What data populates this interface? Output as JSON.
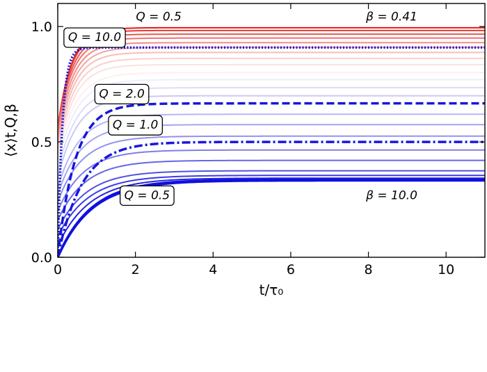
{
  "chart_data": {
    "type": "line",
    "xlabel": "t/τ₀",
    "ylabel": "⟨x⟩t,Q,β",
    "xlim": [
      0,
      11
    ],
    "ylim": [
      0,
      1.1
    ],
    "xticks": [
      0,
      2,
      4,
      6,
      8,
      10
    ],
    "xtick_labels": [
      "0",
      "2",
      "4",
      "6",
      "8",
      "10"
    ],
    "yticks": [
      0.0,
      0.5,
      1.0
    ],
    "ytick_labels": [
      "0.0",
      "0.5",
      "1.0"
    ],
    "grid": false,
    "model": "x(t) = a + (s - a)(1 - exp(-t/tau))",
    "series": [
      {
        "color": "#e41b16",
        "style": "solid",
        "start": 0.56,
        "asymptote": 0.995,
        "tau": 0.35
      },
      {
        "color": "#e73a34",
        "style": "solid",
        "start": 0.56,
        "asymptote": 0.983,
        "tau": 0.35
      },
      {
        "color": "#ea5651",
        "style": "solid",
        "start": 0.55,
        "asymptote": 0.967,
        "tau": 0.36
      },
      {
        "color": "#ee726e",
        "style": "solid",
        "start": 0.54,
        "asymptote": 0.95,
        "tau": 0.37
      },
      {
        "color": "#f18c88",
        "style": "solid",
        "start": 0.52,
        "asymptote": 0.93,
        "tau": 0.38
      },
      {
        "color": "#f4a5a2",
        "style": "solid",
        "start": 0.5,
        "asymptote": 0.91,
        "tau": 0.39
      },
      {
        "color": "#f7bcb9",
        "style": "solid",
        "start": 0.48,
        "asymptote": 0.888,
        "tau": 0.4
      },
      {
        "color": "#f9d0ce",
        "style": "solid",
        "start": 0.46,
        "asymptote": 0.862,
        "tau": 0.41
      },
      {
        "color": "#fbe2e1",
        "style": "solid",
        "start": 0.44,
        "asymptote": 0.835,
        "tau": 0.42
      },
      {
        "color": "#fdf0ef",
        "style": "solid",
        "start": 0.42,
        "asymptote": 0.8,
        "tau": 0.44
      },
      {
        "color": "#eeeefc",
        "style": "solid",
        "start": 0.4,
        "asymptote": 0.77,
        "tau": 0.46
      },
      {
        "color": "#dcdcfb",
        "style": "solid",
        "start": 0.37,
        "asymptote": 0.735,
        "tau": 0.48
      },
      {
        "color": "#c8c8f8",
        "style": "solid",
        "start": 0.34,
        "asymptote": 0.7,
        "tau": 0.5
      },
      {
        "color": "#b6b6f6",
        "style": "solid",
        "start": 0.3,
        "asymptote": 0.62,
        "tau": 0.55
      },
      {
        "color": "#a5a5f4",
        "style": "solid",
        "start": 0.27,
        "asymptote": 0.575,
        "tau": 0.58
      },
      {
        "color": "#9090f1",
        "style": "solid",
        "start": 0.24,
        "asymptote": 0.525,
        "tau": 0.62
      },
      {
        "color": "#7d7dee",
        "style": "solid",
        "start": 0.2,
        "asymptote": 0.465,
        "tau": 0.66
      },
      {
        "color": "#6565eb",
        "style": "solid",
        "start": 0.16,
        "asymptote": 0.42,
        "tau": 0.7
      },
      {
        "color": "#5050e8",
        "style": "solid",
        "start": 0.12,
        "asymptote": 0.375,
        "tau": 0.74
      },
      {
        "color": "#3a3ae5",
        "style": "solid",
        "start": 0.09,
        "asymptote": 0.355,
        "tau": 0.78
      },
      {
        "color": "#2424e2",
        "style": "solid",
        "start": 0.05,
        "asymptote": 0.343,
        "tau": 0.82
      },
      {
        "color": "#1010df",
        "style": "solid",
        "start": 0.0,
        "asymptote": 0.336,
        "tau": 0.86,
        "width": 3.5
      },
      {
        "color": "#1010df",
        "style": "solid",
        "start": 0.0,
        "asymptote": 0.333,
        "tau": 0.88,
        "width": 3.5
      },
      {
        "color": "#1616e0",
        "style": "dotted",
        "start": 0.0,
        "asymptote": 0.909,
        "tau": 0.12,
        "width": 3.5
      },
      {
        "color": "#1616e0",
        "style": "dashed",
        "start": 0.0,
        "asymptote": 0.667,
        "tau": 0.45,
        "width": 3.5
      },
      {
        "color": "#1616e0",
        "style": "dashdot",
        "start": 0.0,
        "asymptote": 0.5,
        "tau": 0.62,
        "width": 3.5
      }
    ],
    "annotations": [
      {
        "text": "Q = 0.5",
        "x": 2.6,
        "y": 1.045,
        "boxed": false
      },
      {
        "text": "β = 0.41",
        "x": 8.6,
        "y": 1.045,
        "boxed": false
      },
      {
        "text": "Q = 10.0",
        "x": 0.95,
        "y": 0.955,
        "boxed": true
      },
      {
        "text": "Q = 2.0",
        "x": 1.65,
        "y": 0.71,
        "boxed": true
      },
      {
        "text": "Q = 1.0",
        "x": 2.0,
        "y": 0.575,
        "boxed": true
      },
      {
        "text": "Q = 0.5",
        "x": 2.3,
        "y": 0.27,
        "boxed": true
      },
      {
        "text": "β = 10.0",
        "x": 8.6,
        "y": 0.27,
        "boxed": false
      }
    ]
  }
}
